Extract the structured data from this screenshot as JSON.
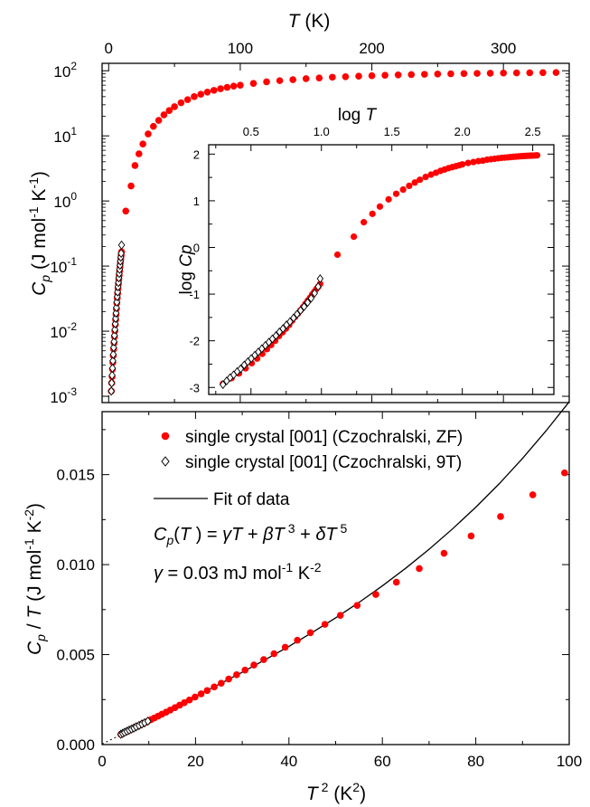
{
  "chart_data": [
    {
      "type": "scatter",
      "panel": "top",
      "xlabel": "T (K)",
      "ylabel": "C_p (J mol^-1 K^-1)",
      "x_axis_position": "top",
      "xlim": [
        -5,
        350
      ],
      "xticks": [
        0,
        100,
        200,
        300
      ],
      "yscale": "log",
      "ylim": [
        0.0008,
        130
      ],
      "yticks": [
        "10^-3",
        "10^-2",
        "10^-1",
        "10^0",
        "10^1",
        "10^2"
      ],
      "grid": false,
      "series": [
        {
          "marker": "filled-circle",
          "color": "#ff0000",
          "x": [
            2.0,
            2.3,
            2.6,
            2.9,
            3.2,
            3.5,
            3.8,
            4.1,
            4.4,
            4.7,
            5.0,
            5.3,
            5.6,
            5.9,
            6.2,
            6.5,
            6.8,
            7.1,
            7.4,
            7.7,
            8.0,
            8.3,
            8.6,
            8.9,
            9.2,
            9.5,
            9.8,
            13,
            17,
            20,
            23,
            26,
            30,
            34,
            38,
            42,
            46,
            50,
            55,
            60,
            65,
            70,
            75,
            80,
            85,
            90,
            95,
            100,
            110,
            120,
            130,
            140,
            150,
            160,
            170,
            180,
            190,
            200,
            210,
            220,
            230,
            240,
            250,
            260,
            270,
            280,
            290,
            300,
            310,
            320,
            330,
            340
          ],
          "y": [
            0.0012,
            0.0016,
            0.002,
            0.0026,
            0.0033,
            0.0042,
            0.0053,
            0.0066,
            0.0082,
            0.01,
            0.0125,
            0.015,
            0.018,
            0.022,
            0.027,
            0.032,
            0.038,
            0.045,
            0.053,
            0.062,
            0.072,
            0.084,
            0.097,
            0.112,
            0.128,
            0.146,
            0.165,
            0.7,
            1.7,
            3.5,
            5.3,
            7.5,
            10.7,
            14,
            17.3,
            21,
            24.5,
            28,
            32.2,
            36,
            40,
            43.5,
            47,
            50,
            53,
            55.5,
            58,
            60,
            64,
            67.5,
            70.5,
            73,
            75.5,
            77.5,
            79.5,
            81,
            82.5,
            84,
            85.2,
            86.3,
            87.3,
            88.2,
            89,
            89.8,
            90.5,
            91.1,
            91.7,
            92.2,
            92.7,
            93.2,
            93.6,
            94
          ]
        },
        {
          "marker": "open-diamond",
          "color": "#000000",
          "x": [
            2.0,
            2.3,
            2.6,
            2.9,
            3.2,
            3.5,
            3.8,
            4.1,
            4.4,
            4.7,
            5.0,
            5.3,
            5.6,
            5.9,
            6.2,
            6.5,
            6.8,
            7.1,
            7.4,
            7.7,
            8.0,
            8.3,
            8.6,
            8.9,
            9.2,
            9.5,
            9.8
          ],
          "y": [
            0.0012,
            0.0016,
            0.0021,
            0.0027,
            0.0035,
            0.0044,
            0.0056,
            0.0069,
            0.0086,
            0.0106,
            0.013,
            0.0157,
            0.019,
            0.023,
            0.028,
            0.034,
            0.04,
            0.048,
            0.056,
            0.066,
            0.077,
            0.089,
            0.103,
            0.119,
            0.137,
            0.157,
            0.21
          ]
        }
      ]
    },
    {
      "type": "scatter",
      "panel": "inset",
      "xlabel": "log T",
      "ylabel": "log Cp",
      "x_axis_position": "top",
      "xlim": [
        0.2,
        2.65
      ],
      "xticks": [
        "0.5",
        "1.0",
        "1.5",
        "2.0",
        "2.5"
      ],
      "ylim": [
        -3.15,
        2.2
      ],
      "yticks": [
        "-3",
        "-2",
        "-1",
        "0",
        "1",
        "2"
      ],
      "grid": false,
      "series": [
        {
          "marker": "filled-circle",
          "color": "#ff0000",
          "x": [
            0.301,
            0.362,
            0.415,
            0.462,
            0.505,
            0.544,
            0.58,
            0.613,
            0.643,
            0.672,
            0.699,
            0.724,
            0.748,
            0.771,
            0.792,
            0.813,
            0.833,
            0.851,
            0.869,
            0.886,
            0.903,
            0.919,
            0.934,
            0.949,
            0.964,
            0.978,
            0.991,
            1.114,
            1.23,
            1.301,
            1.362,
            1.415,
            1.477,
            1.531,
            1.58,
            1.623,
            1.663,
            1.699,
            1.74,
            1.778,
            1.813,
            1.845,
            1.875,
            1.903,
            1.929,
            1.954,
            1.978,
            2.0,
            2.041,
            2.079,
            2.114,
            2.146,
            2.176,
            2.204,
            2.23,
            2.255,
            2.279,
            2.301,
            2.322,
            2.342,
            2.362,
            2.38,
            2.398,
            2.415,
            2.431,
            2.447,
            2.462,
            2.477,
            2.491,
            2.505,
            2.519,
            2.531
          ],
          "y": [
            -2.92,
            -2.8,
            -2.7,
            -2.59,
            -2.48,
            -2.38,
            -2.28,
            -2.18,
            -2.09,
            -2.0,
            -1.9,
            -1.82,
            -1.74,
            -1.66,
            -1.57,
            -1.49,
            -1.42,
            -1.35,
            -1.28,
            -1.21,
            -1.14,
            -1.08,
            -1.01,
            -0.95,
            -0.89,
            -0.84,
            -0.78,
            -0.155,
            0.23,
            0.54,
            0.72,
            0.875,
            1.03,
            1.15,
            1.24,
            1.32,
            1.39,
            1.45,
            1.51,
            1.56,
            1.6,
            1.64,
            1.67,
            1.7,
            1.72,
            1.74,
            1.76,
            1.78,
            1.81,
            1.83,
            1.85,
            1.86,
            1.88,
            1.89,
            1.9,
            1.91,
            1.92,
            1.925,
            1.93,
            1.936,
            1.941,
            1.946,
            1.95,
            1.954,
            1.957,
            1.96,
            1.963,
            1.965,
            1.967,
            1.969,
            1.971,
            1.973
          ]
        },
        {
          "marker": "open-diamond",
          "color": "#000000",
          "x": [
            0.301,
            0.327,
            0.352,
            0.377,
            0.402,
            0.427,
            0.452,
            0.477,
            0.502,
            0.527,
            0.552,
            0.577,
            0.602,
            0.627,
            0.652,
            0.677,
            0.702,
            0.727,
            0.752,
            0.777,
            0.802,
            0.827,
            0.852,
            0.877,
            0.902,
            0.927,
            0.952,
            0.977,
            0.991
          ],
          "y": [
            -2.94,
            -2.86,
            -2.79,
            -2.73,
            -2.66,
            -2.6,
            -2.52,
            -2.45,
            -2.38,
            -2.31,
            -2.24,
            -2.17,
            -2.1,
            -2.03,
            -1.96,
            -1.89,
            -1.81,
            -1.74,
            -1.66,
            -1.59,
            -1.51,
            -1.43,
            -1.35,
            -1.27,
            -1.18,
            -1.09,
            -0.98,
            -0.84,
            -0.67
          ]
        }
      ]
    },
    {
      "type": "scatter",
      "panel": "bottom",
      "xlabel": "T^2 (K^2)",
      "ylabel": "C_p / T (J mol^-1 K^-2)",
      "xlim": [
        0,
        100
      ],
      "xticks": [
        "0",
        "20",
        "40",
        "60",
        "80",
        "100"
      ],
      "ylim": [
        0,
        0.0185
      ],
      "yticks": [
        "0.000",
        "0.005",
        "0.010",
        "0.015"
      ],
      "grid": false,
      "legend_position": "top-left",
      "legend": [
        "single crystal [001] (Czochralski, ZF)",
        "single crystal [001] (Czochralski, 9T)",
        "Fit of data"
      ],
      "annotations": [
        "C_p(T) = γT + βT^3 + δT^5",
        "γ = 0.03 mJ mol^-1 K^-2"
      ],
      "series": [
        {
          "name": "single crystal [001] (Czochralski, ZF)",
          "marker": "filled-circle",
          "color": "#ff0000",
          "x": [
            4.0,
            4.4,
            4.8,
            5.3,
            5.8,
            6.3,
            6.8,
            7.3,
            7.9,
            8.5,
            9.1,
            9.8,
            10.5,
            11.2,
            12.0,
            12.8,
            13.7,
            14.6,
            15.6,
            16.6,
            17.6,
            18.7,
            19.9,
            21.2,
            22.5,
            24.0,
            25.5,
            27.1,
            28.8,
            30.6,
            32.5,
            34.6,
            36.8,
            39.2,
            41.8,
            44.6,
            47.7,
            51.0,
            54.6,
            58.6,
            63.0,
            67.9,
            73.2,
            79.0,
            85.3,
            92.2,
            99.0
          ],
          "y": [
            0.00057,
            0.00062,
            0.00068,
            0.00074,
            0.0008,
            0.00086,
            0.00092,
            0.00099,
            0.00106,
            0.00114,
            0.00121,
            0.0013,
            0.00139,
            0.00148,
            0.00158,
            0.00169,
            0.0018,
            0.00192,
            0.00205,
            0.00219,
            0.00233,
            0.00248,
            0.00264,
            0.00282,
            0.003,
            0.0032,
            0.00341,
            0.00364,
            0.00388,
            0.00414,
            0.00442,
            0.00472,
            0.00505,
            0.00541,
            0.0058,
            0.00622,
            0.00668,
            0.00718,
            0.00773,
            0.00834,
            0.00902,
            0.00978,
            0.01063,
            0.01159,
            0.01267,
            0.01388,
            0.0151
          ]
        },
        {
          "name": "single crystal [001] (Czochralski, 9T)",
          "marker": "open-diamond",
          "color": "#000000",
          "x": [
            4.0,
            4.4,
            4.8,
            5.3,
            5.8,
            6.3,
            6.8,
            7.3,
            7.9,
            8.5,
            9.1,
            9.8
          ],
          "y": [
            0.00057,
            0.00062,
            0.00068,
            0.00074,
            0.0008,
            0.00086,
            0.00092,
            0.00099,
            0.00106,
            0.00114,
            0.00121,
            0.0013
          ]
        },
        {
          "name": "Fit of data",
          "line": "solid",
          "color": "#000000",
          "x": [
            0,
            5,
            10,
            15,
            20,
            25,
            30,
            35,
            40,
            45,
            50,
            55,
            60,
            65,
            70,
            75,
            80,
            85,
            90,
            95,
            100
          ],
          "y": [
            3e-05,
            0.00067,
            0.00136,
            0.00202,
            0.00268,
            0.00334,
            0.00402,
            0.00473,
            0.00546,
            0.00623,
            0.00704,
            0.0079,
            0.00882,
            0.0098,
            0.01085,
            0.01198,
            0.01319,
            0.01449,
            0.0159,
            0.01742,
            0.01905
          ]
        }
      ]
    }
  ]
}
